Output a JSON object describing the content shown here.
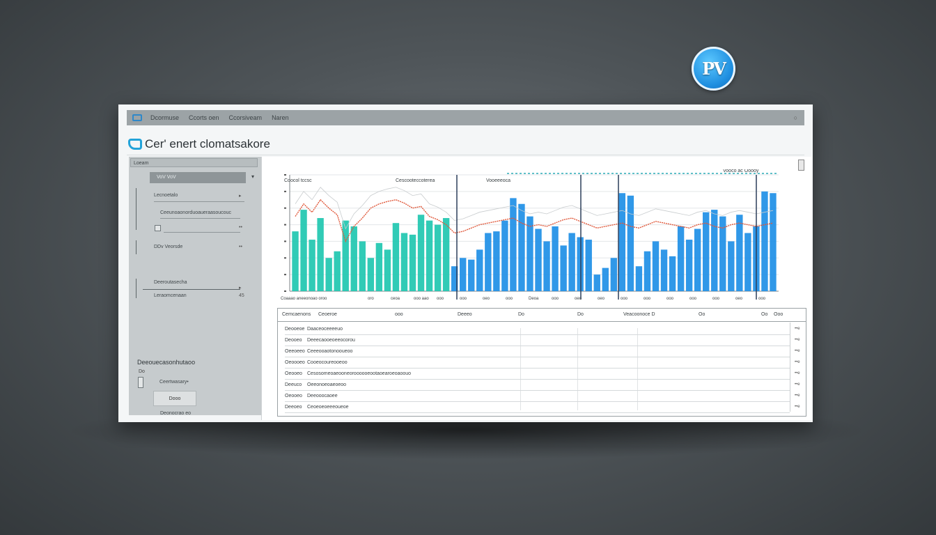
{
  "logo": {
    "text": "PV"
  },
  "window": {
    "menu": [
      "Dcormuse",
      "Ccorts oen",
      "Ccorsiveam",
      "Naren"
    ],
    "app_title": "Cer' enert clomatsakore"
  },
  "sidebar": {
    "header": "Loeam",
    "filter_value": "VoV  VoV",
    "filter_arrow": "▾",
    "rows": [
      {
        "label": "Lecnoetalo",
        "end": "▸"
      },
      {
        "label": "Ceeunoaonorduoaueraasoucouc",
        "end": ""
      },
      {
        "label": "",
        "end": "••"
      },
      {
        "label": "DDv  Veorsde",
        "end": "••"
      },
      {
        "label": "Deeroutasecha",
        "end": "▸"
      },
      {
        "label": "Leraomcenaan",
        "end": "45"
      }
    ],
    "section_title": "Deeouecasonhutaoo",
    "section_sub": "Do",
    "sub_row": "Ceertwasary•",
    "button": "Dooo",
    "footer": "Deonocrao  eo"
  },
  "main": {
    "chart_legend": [
      "Coocol tccsc",
      "Cescooteccoterea",
      "Vooeeeoca"
    ],
    "chart_corner": "Vooco ac Ooooy",
    "x_tick_labels": [
      "Coaaao aneeonoao  oroo",
      "oro",
      "ceoa",
      "ooo aao",
      "ooo",
      "ooo",
      "oeo",
      "ooo",
      "Deoa",
      "ooo",
      "oeo",
      "oeo",
      "ooo",
      "ooo",
      "ooo",
      "ooo",
      "ooo",
      "oeo",
      "ooo"
    ],
    "table": {
      "headers": [
        "Cemcaenons",
        "Ceoeroe",
        "ooo",
        "Deeeo",
        "Do",
        "Do",
        "Veacoonoce D",
        "Oo",
        "Oo",
        "Ooo"
      ],
      "rows": [
        [
          "Deooeoe",
          "Daaceoceeeeuo",
          "••e"
        ],
        [
          "Deooeo",
          "Deeecaooeoeeocorou",
          "••e"
        ],
        [
          "Oeeoeeo",
          "Ceeeooaotonooueoo",
          "••e"
        ],
        [
          "Oeoooeo",
          "Cooeocoureooeoo",
          "••e"
        ],
        [
          "Oeooeo",
          "Cesosomeoaeooneoroooooeootaoearoeoaoouo",
          "••e"
        ],
        [
          "Deeuco",
          "Oeeonoeoaeoeoo",
          "••e"
        ],
        [
          "Oeooeo",
          "Deeooocaoee",
          "••e"
        ],
        [
          "Deeoeo",
          "Ceoeoeoeeeoueoe",
          "••e"
        ]
      ]
    }
  },
  "chart_data": {
    "type": "bar",
    "categories": [
      "1",
      "2",
      "3",
      "4",
      "5",
      "6",
      "7",
      "8",
      "9",
      "10",
      "11",
      "12",
      "13",
      "14",
      "15",
      "16",
      "17",
      "18",
      "19",
      "20",
      "21",
      "22",
      "23",
      "24",
      "25",
      "26",
      "27",
      "28",
      "29",
      "30",
      "31",
      "32",
      "33",
      "34",
      "35",
      "36",
      "37",
      "38",
      "39",
      "40",
      "41",
      "42",
      "43",
      "44",
      "45",
      "46",
      "47",
      "48",
      "49",
      "50",
      "51",
      "52",
      "53",
      "54",
      "55",
      "56",
      "57",
      "58"
    ],
    "series": [
      {
        "color_left": "#1fc7b0",
        "color_right": "#1e8fe6",
        "values": [
          72,
          98,
          62,
          88,
          40,
          48,
          85,
          78,
          60,
          40,
          58,
          50,
          82,
          70,
          68,
          92,
          85,
          80,
          88,
          30,
          40,
          38,
          50,
          70,
          72,
          85,
          112,
          105,
          90,
          75,
          60,
          78,
          55,
          70,
          65,
          62,
          20,
          28,
          40,
          118,
          115,
          30,
          48,
          60,
          50,
          42,
          78,
          62,
          75,
          95,
          98,
          90,
          60,
          92,
          70,
          78,
          120,
          118
        ],
        "colors": [
          "teal",
          "teal",
          "teal",
          "teal",
          "teal",
          "teal",
          "teal",
          "teal",
          "teal",
          "teal",
          "teal",
          "teal",
          "teal",
          "teal",
          "teal",
          "teal",
          "teal",
          "teal",
          "teal",
          "blue",
          "blue",
          "blue",
          "blue",
          "blue",
          "blue",
          "blue",
          "blue",
          "blue",
          "blue",
          "blue",
          "blue",
          "blue",
          "blue",
          "blue",
          "blue",
          "blue",
          "blue",
          "blue",
          "blue",
          "blue",
          "blue",
          "blue",
          "blue",
          "blue",
          "blue",
          "blue",
          "blue",
          "blue",
          "blue",
          "blue",
          "blue",
          "blue",
          "blue",
          "blue",
          "blue",
          "blue",
          "blue",
          "blue"
        ]
      }
    ],
    "lines": [
      {
        "name": "",
        "color": "#e0583a",
        "values": [
          90,
          105,
          95,
          110,
          100,
          92,
          60,
          78,
          88,
          100,
          105,
          108,
          110,
          106,
          100,
          102,
          90,
          86,
          80,
          70,
          72,
          76,
          80,
          82,
          84,
          86,
          88,
          82,
          78,
          80,
          78,
          82,
          86,
          88,
          84,
          80,
          76,
          78,
          80,
          82,
          78,
          76,
          80,
          84,
          82,
          80,
          78,
          76,
          80,
          82,
          78,
          76,
          80,
          82,
          80,
          78,
          80,
          82
        ]
      }
    ],
    "ylim": [
      0,
      140
    ],
    "grid": true
  }
}
